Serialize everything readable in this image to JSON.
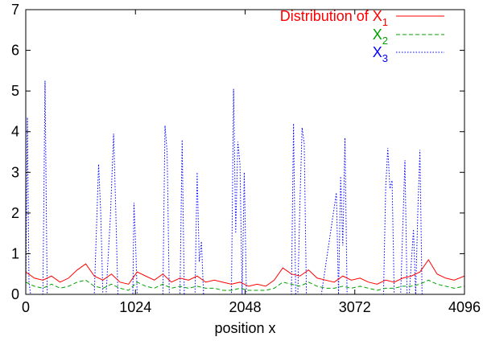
{
  "chart_data": {
    "type": "line",
    "title": "",
    "xlabel": "position  x",
    "ylabel": "",
    "xlim": [
      0,
      4096
    ],
    "ylim": [
      0,
      7
    ],
    "x_ticks": [
      0,
      1024,
      2048,
      3072,
      4096
    ],
    "x_tick_labels": [
      "0",
      "1024",
      "2048",
      "3072",
      "4096"
    ],
    "y_ticks": [
      0,
      1,
      2,
      3,
      4,
      5,
      6,
      7
    ],
    "y_tick_labels": [
      "0",
      "1",
      "2",
      "3",
      "4",
      "5",
      "6",
      "7"
    ],
    "grid": false,
    "legend_position": "top-right",
    "series": [
      {
        "name": "Distribution of X1",
        "label_main": "Distribution of X",
        "label_sub": "1",
        "color": "#ff0000",
        "style": "solid",
        "x": [
          0,
          80,
          160,
          240,
          320,
          400,
          480,
          560,
          640,
          720,
          800,
          880,
          960,
          1040,
          1120,
          1200,
          1280,
          1360,
          1440,
          1520,
          1600,
          1680,
          1760,
          1840,
          1920,
          2000,
          2080,
          2160,
          2240,
          2320,
          2400,
          2480,
          2560,
          2640,
          2720,
          2800,
          2880,
          2960,
          3040,
          3120,
          3200,
          3280,
          3360,
          3440,
          3520,
          3600,
          3680,
          3760,
          3840,
          3920,
          4000,
          4096
        ],
        "y": [
          0.55,
          0.4,
          0.35,
          0.45,
          0.3,
          0.4,
          0.6,
          0.75,
          0.45,
          0.35,
          0.5,
          0.3,
          0.25,
          0.55,
          0.45,
          0.35,
          0.5,
          0.3,
          0.4,
          0.35,
          0.45,
          0.3,
          0.35,
          0.3,
          0.25,
          0.3,
          0.2,
          0.25,
          0.2,
          0.35,
          0.65,
          0.5,
          0.45,
          0.6,
          0.4,
          0.35,
          0.3,
          0.45,
          0.35,
          0.4,
          0.3,
          0.25,
          0.35,
          0.3,
          0.4,
          0.45,
          0.55,
          0.85,
          0.5,
          0.4,
          0.35,
          0.45
        ]
      },
      {
        "name": "X2",
        "label_main": "X",
        "label_sub": "2",
        "color": "#00a000",
        "style": "dashed",
        "x": [
          0,
          80,
          160,
          240,
          320,
          400,
          480,
          560,
          640,
          720,
          800,
          880,
          960,
          1040,
          1120,
          1200,
          1280,
          1360,
          1440,
          1520,
          1600,
          1680,
          1760,
          1840,
          1920,
          2000,
          2080,
          2160,
          2240,
          2320,
          2400,
          2480,
          2560,
          2640,
          2720,
          2800,
          2880,
          2960,
          3040,
          3120,
          3200,
          3280,
          3360,
          3440,
          3520,
          3600,
          3680,
          3760,
          3840,
          3920,
          4000,
          4096
        ],
        "y": [
          0.3,
          0.2,
          0.15,
          0.25,
          0.15,
          0.2,
          0.3,
          0.35,
          0.2,
          0.15,
          0.25,
          0.15,
          0.1,
          0.3,
          0.2,
          0.15,
          0.25,
          0.15,
          0.2,
          0.15,
          0.2,
          0.15,
          0.15,
          0.1,
          0.1,
          0.15,
          0.1,
          0.1,
          0.1,
          0.15,
          0.3,
          0.25,
          0.2,
          0.3,
          0.2,
          0.15,
          0.15,
          0.2,
          0.15,
          0.2,
          0.15,
          0.1,
          0.15,
          0.15,
          0.2,
          0.2,
          0.25,
          0.35,
          0.25,
          0.2,
          0.15,
          0.2
        ]
      },
      {
        "name": "X3",
        "label_main": "X",
        "label_sub": "3",
        "color": "#0000ff",
        "style": "dotted",
        "x": [
          0,
          15,
          30,
          45,
          160,
          180,
          200,
          640,
          660,
          680,
          700,
          720,
          750,
          790,
          820,
          840,
          860,
          880,
          1000,
          1010,
          1020,
          1030,
          1040,
          1280,
          1300,
          1320,
          1340,
          1440,
          1460,
          1480,
          1580,
          1600,
          1620,
          1640,
          1660,
          1920,
          1940,
          1960,
          1980,
          2000,
          2020,
          2040,
          2060,
          2100,
          2120,
          2140,
          2480,
          2500,
          2520,
          2540,
          2560,
          2580,
          2600,
          2620,
          2640,
          2660,
          2680,
          2700,
          2720,
          2740,
          2760,
          2900,
          2920,
          2940,
          2960,
          2980,
          3000,
          3020,
          3340,
          3360,
          3380,
          3400,
          3420,
          3440,
          3460,
          3480,
          3500,
          3540,
          3560,
          3580,
          3620,
          3640,
          3660,
          3680,
          3700,
          3720,
          3740,
          3760,
          3800,
          4096
        ],
        "y": [
          0,
          4.35,
          0.3,
          0,
          0,
          5.25,
          0,
          0,
          1.6,
          3.2,
          2.0,
          0,
          0,
          1.9,
          3.95,
          2.1,
          0,
          0,
          0,
          2.25,
          1.6,
          0.9,
          0,
          0,
          4.15,
          3.5,
          0,
          0,
          3.8,
          0,
          0,
          3.0,
          0.8,
          1.3,
          0,
          0,
          5.05,
          1.5,
          3.75,
          3.2,
          0,
          3.0,
          0,
          0,
          0,
          0,
          0,
          4.2,
          0,
          0,
          2.3,
          4.1,
          3.7,
          0,
          0,
          0,
          0,
          0,
          0,
          0,
          0,
          2.5,
          0,
          2.9,
          1.2,
          3.85,
          0,
          0,
          0,
          2.6,
          3.6,
          2.6,
          2.8,
          0,
          0,
          0,
          0,
          3.3,
          0,
          0,
          1.6,
          0,
          2.0,
          3.55,
          0,
          0,
          0,
          0,
          0,
          0
        ]
      }
    ]
  }
}
